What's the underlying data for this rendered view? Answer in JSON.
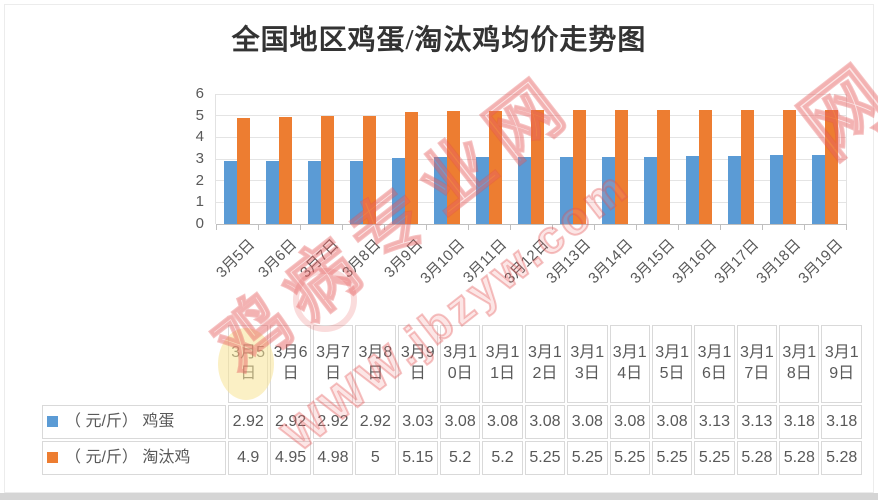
{
  "page": {
    "title": "全国地区鸡蛋/淘汰鸡均价走势图"
  },
  "watermark": {
    "site_name": "鸡病专业网",
    "site_url": "WWW.jbzyw.com",
    "partial_char": "网"
  },
  "chart_data": {
    "type": "bar",
    "title": "全国地区鸡蛋/淘汰鸡均价走势图",
    "categories": [
      "3月5日",
      "3月6日",
      "3月7日",
      "3月8日",
      "3月9日",
      "3月10日",
      "3月11日",
      "3月12日",
      "3月13日",
      "3月14日",
      "3月15日",
      "3月16日",
      "3月17日",
      "3月18日",
      "3月19日"
    ],
    "series": [
      {
        "name": "（ 元/斤） 鸡蛋",
        "color": "#5B9BD5",
        "values": [
          2.92,
          2.92,
          2.92,
          2.92,
          3.03,
          3.08,
          3.08,
          3.08,
          3.08,
          3.08,
          3.08,
          3.13,
          3.13,
          3.18,
          3.18
        ]
      },
      {
        "name": "（ 元/斤） 淘汰鸡",
        "color": "#ED7D31",
        "values": [
          4.9,
          4.95,
          4.98,
          5,
          5.15,
          5.2,
          5.2,
          5.25,
          5.25,
          5.25,
          5.25,
          5.25,
          5.28,
          5.28,
          5.28
        ]
      }
    ],
    "xlabel": "",
    "ylabel": "",
    "ylim": [
      0,
      6
    ],
    "yticks": [
      0,
      1,
      2,
      3,
      4,
      5,
      6
    ],
    "grid": true,
    "legend_position": "table-rows-left",
    "colors": {
      "grid": "#e4e4e4",
      "axis": "#bfbfbf",
      "text": "#595959"
    }
  }
}
